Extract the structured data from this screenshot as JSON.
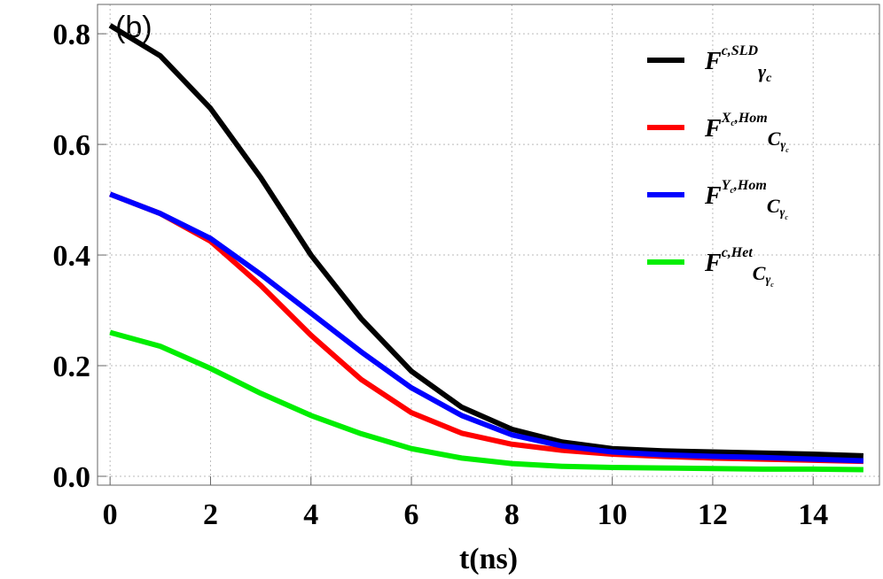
{
  "chart_data": {
    "type": "line",
    "annotation": "(b)",
    "xlabel": "t(ns)",
    "x": [
      0,
      1,
      2,
      3,
      4,
      5,
      6,
      7,
      8,
      9,
      10,
      11,
      12,
      13,
      14,
      15
    ],
    "series": [
      {
        "label": [
          {
            "text": "F",
            "pos": "base"
          },
          {
            "text": "c,SLD",
            "pos": "sup"
          },
          {
            "text": "γ",
            "pos": "sub"
          },
          {
            "text": "c",
            "pos": "subsub"
          }
        ],
        "color": "#000000",
        "values": [
          0.815,
          0.76,
          0.665,
          0.54,
          0.4,
          0.285,
          0.19,
          0.125,
          0.085,
          0.062,
          0.05,
          0.046,
          0.044,
          0.042,
          0.04,
          0.037
        ]
      },
      {
        "label": [
          {
            "text": "F",
            "pos": "base"
          },
          {
            "text": "X",
            "pos": "sup"
          },
          {
            "text": "c",
            "pos": "supsub"
          },
          {
            "text": ",Hom",
            "pos": "sup"
          },
          {
            "text": "C",
            "pos": "sub"
          },
          {
            "text": "γ",
            "pos": "subsub"
          },
          {
            "text": "c",
            "pos": "subsubsub"
          }
        ],
        "color": "#ff0000",
        "values": [
          0.51,
          0.475,
          0.425,
          0.345,
          0.255,
          0.175,
          0.115,
          0.078,
          0.058,
          0.047,
          0.04,
          0.036,
          0.033,
          0.031,
          0.029,
          0.027
        ]
      },
      {
        "label": [
          {
            "text": "F",
            "pos": "base"
          },
          {
            "text": "Y",
            "pos": "sup"
          },
          {
            "text": "c",
            "pos": "supsub"
          },
          {
            "text": ",Hom",
            "pos": "sup"
          },
          {
            "text": "C",
            "pos": "sub"
          },
          {
            "text": "γ",
            "pos": "subsub"
          },
          {
            "text": "c",
            "pos": "subsubsub"
          }
        ],
        "color": "#0000ff",
        "values": [
          0.51,
          0.475,
          0.43,
          0.365,
          0.295,
          0.225,
          0.16,
          0.11,
          0.075,
          0.055,
          0.044,
          0.039,
          0.036,
          0.034,
          0.031,
          0.028
        ]
      },
      {
        "label": [
          {
            "text": "F",
            "pos": "base"
          },
          {
            "text": "c,Het",
            "pos": "sup"
          },
          {
            "text": "C",
            "pos": "sub"
          },
          {
            "text": "γ",
            "pos": "subsub"
          },
          {
            "text": "c",
            "pos": "subsubsub"
          }
        ],
        "color": "#00ee00",
        "values": [
          0.26,
          0.235,
          0.195,
          0.15,
          0.11,
          0.077,
          0.05,
          0.033,
          0.023,
          0.018,
          0.016,
          0.015,
          0.014,
          0.013,
          0.013,
          0.012
        ]
      }
    ],
    "xlim": [
      -0.25,
      15.32
    ],
    "ylim": [
      -0.016,
      0.853
    ],
    "xticks": [
      0,
      2,
      4,
      6,
      8,
      10,
      12,
      14
    ],
    "yticks": [
      {
        "value": 0,
        "label": "0.0"
      },
      0.2,
      0.4,
      0.6,
      0.8
    ],
    "grid": true,
    "legend": "upper right"
  }
}
